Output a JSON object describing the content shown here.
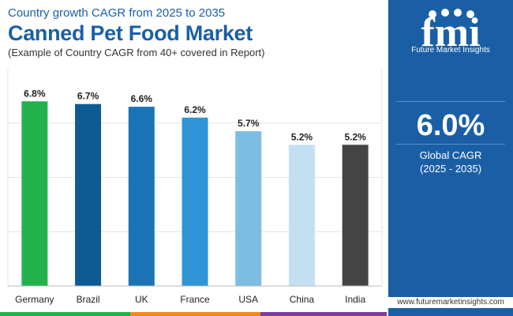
{
  "header": {
    "kicker": "Country growth CAGR from 2025 to 2035",
    "title": "Canned Pet Food Market",
    "subtitle": "(Example of Country CAGR from 40+ covered in Report)"
  },
  "chart_data": {
    "type": "bar",
    "categories": [
      "Germany",
      "Brazil",
      "UK",
      "France",
      "USA",
      "China",
      "India"
    ],
    "values": [
      6.8,
      6.7,
      6.6,
      6.2,
      5.7,
      5.2,
      5.2
    ],
    "data_labels": [
      "6.8%",
      "6.7%",
      "6.6%",
      "6.2%",
      "5.7%",
      "5.2%",
      "5.2%"
    ],
    "colors": [
      "#22b24c",
      "#0e5a95",
      "#1a73b5",
      "#2e95d8",
      "#7dbde3",
      "#c3e0f3",
      "#444444"
    ],
    "ylim": [
      0,
      8
    ],
    "grid": true,
    "title": "",
    "xlabel": "",
    "ylabel": ""
  },
  "panel": {
    "logo_text": "fmi",
    "logo_caption": "Future Market Insights",
    "value": "6.0%",
    "label_line1": "Global CAGR",
    "label_line2": "(2025 - 2035)",
    "website": "www.futuremarketinsights.com"
  },
  "footer_colors": [
    "#22b24c",
    "#f08a1f",
    "#7b3fa0"
  ]
}
